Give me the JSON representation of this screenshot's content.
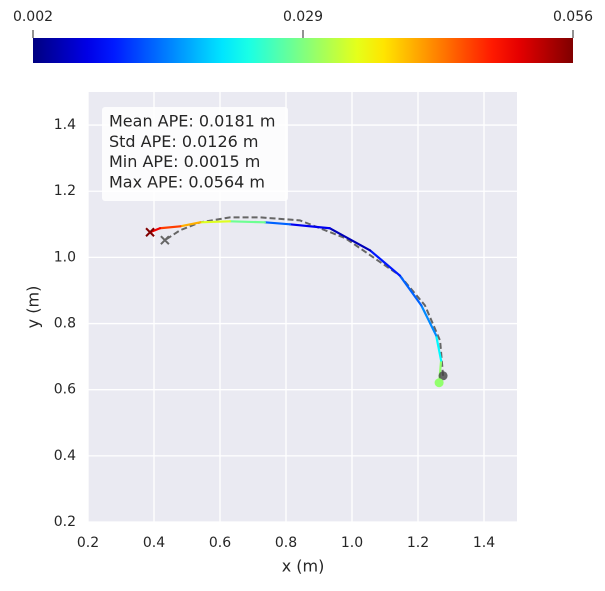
{
  "chart_data": {
    "type": "trajectory",
    "xlabel": "x (m)",
    "ylabel": "y (m)",
    "xlim": [
      0.2,
      1.5
    ],
    "ylim": [
      0.2,
      1.5
    ],
    "xticks": [
      0.2,
      0.4,
      0.6,
      0.8,
      {
        "value": 1,
        "label": "1.0"
      },
      1.2,
      1.4
    ],
    "yticks": [
      0.2,
      0.4,
      0.6,
      0.8,
      {
        "value": 1,
        "label": "1.0"
      },
      1.2,
      1.4
    ],
    "grid": true,
    "annotations": [
      "Mean APE: 0.0181 m",
      "Std APE: 0.0126 m",
      "Min APE: 0.0015 m",
      "Max APE: 0.0564 m"
    ],
    "colorbar": {
      "colormap": "jet",
      "lim": [
        0.002,
        0.056
      ],
      "ticks": [
        0.002,
        0.029,
        0.056
      ]
    },
    "series": [
      {
        "x": [
          1.264,
          1.27,
          1.255,
          1.21,
          1.145,
          1.055,
          0.933,
          0.812,
          0.736,
          0.63,
          0.54,
          0.48,
          0.418,
          0.388
        ],
        "values": [
          0.621,
          0.688,
          0.764,
          0.855,
          0.945,
          1.021,
          1.088,
          1.1,
          1.106,
          1.109,
          1.106,
          1.094,
          1.088,
          1.076
        ],
        "error": [
          0.03,
          0.022,
          0.016,
          0.014,
          0.01,
          0.005,
          0.008,
          0.014,
          0.028,
          0.034,
          0.04,
          0.046,
          0.05,
          0.056
        ]
      },
      {
        "color": "#666666",
        "x": [
          1.276,
          1.267,
          1.221,
          1.145,
          0.98,
          0.842,
          0.721,
          0.63,
          0.54,
          0.479,
          0.433
        ],
        "values": [
          0.642,
          0.748,
          0.855,
          0.945,
          1.058,
          1.112,
          1.121,
          1.121,
          1.106,
          1.082,
          1.052
        ]
      }
    ]
  }
}
